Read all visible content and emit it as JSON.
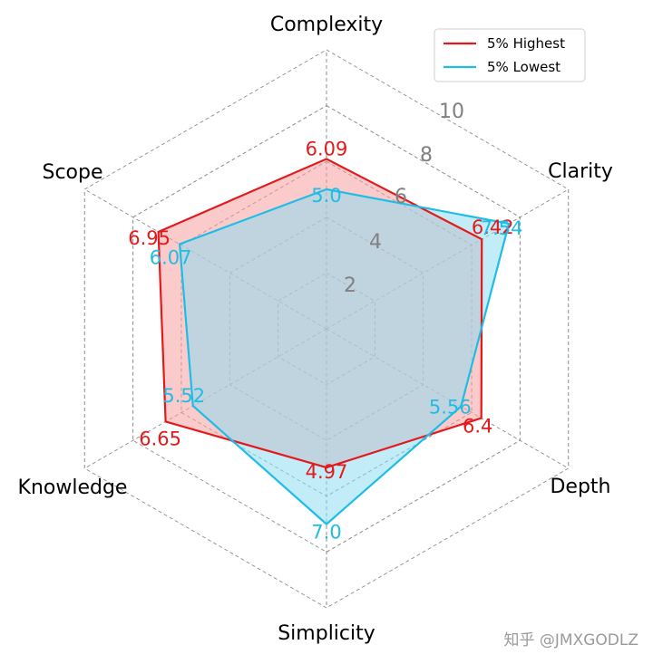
{
  "chart_data": {
    "type": "radar",
    "axes": [
      "Complexity",
      "Clarity",
      "Depth",
      "Simplicity",
      "Knowledge",
      "Scope"
    ],
    "rlim": [
      0,
      10
    ],
    "ticks": [
      2,
      4,
      6,
      8,
      10
    ],
    "tick_labels": [
      "2",
      "4",
      "6",
      "8",
      "10"
    ],
    "grid": true,
    "legend_position": "top-right",
    "series": [
      {
        "name": "5% Highest",
        "values": [
          6.09,
          6.42,
          6.4,
          4.97,
          6.65,
          6.95
        ],
        "labels": [
          "6.09",
          "6.42",
          "6.4",
          "4.97",
          "6.65",
          "6.95"
        ],
        "color": "#e31a1c",
        "fill": "#f8a0a0"
      },
      {
        "name": "5% Lowest",
        "values": [
          5.0,
          7.54,
          5.56,
          7.0,
          5.52,
          6.07
        ],
        "labels": [
          "5.0",
          "7.54",
          "5.56",
          "7.0",
          "5.52",
          "6.07"
        ],
        "color": "#1ebde6",
        "fill": "#8fdcf2"
      }
    ]
  },
  "watermark": "知乎 @JMXGODLZ"
}
